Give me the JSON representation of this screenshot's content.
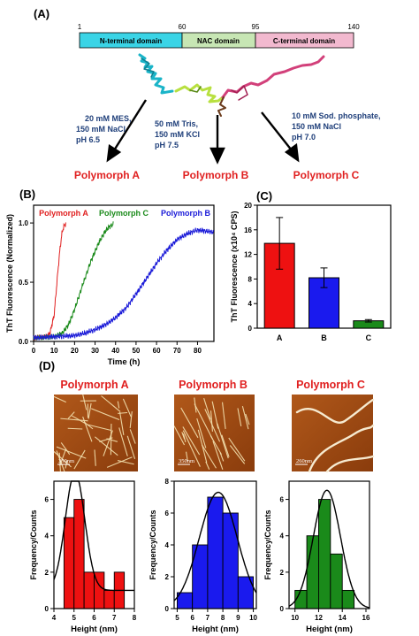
{
  "panel_labels": {
    "A": "(A)",
    "B": "(B)",
    "C": "(C)",
    "D": "(D)"
  },
  "domain_bar": {
    "ticks": [
      "1",
      "60",
      "95",
      "140"
    ],
    "domains": [
      {
        "label": "N-terminal domain",
        "color": "#3ad4e6"
      },
      {
        "label": "NAC domain",
        "color": "#c7e6b4"
      },
      {
        "label": "C-terminal domain",
        "color": "#f2b9cf"
      }
    ]
  },
  "conditions": [
    {
      "lines": [
        "20 mM MES,",
        "150 mM NaCl",
        "pH 6.5"
      ]
    },
    {
      "lines": [
        "50 mM Tris,",
        "150 mM KCl",
        "pH 7.5"
      ]
    },
    {
      "lines": [
        "10 mM Sod. phosphate,",
        "150 mM NaCl",
        "pH 7.0"
      ]
    }
  ],
  "condition_color": "#1f3f7a",
  "polymorph_color": "#e02020",
  "polymorphs": [
    "Polymorph A",
    "Polymorph B",
    "Polymorph C"
  ],
  "afm_scale_labels": [
    "350nm",
    "350nm",
    "260nm"
  ],
  "chart_data": [
    {
      "type": "line",
      "panel": "B",
      "xlabel": "Time (h)",
      "ylabel": "ThT Fluorescence (Normalized)",
      "xlim": [
        0,
        88
      ],
      "ylim": [
        0,
        1.15
      ],
      "xticks": [
        0,
        10,
        20,
        30,
        40,
        50,
        60,
        70,
        80
      ],
      "yticks": [
        0.0,
        0.5,
        1.0
      ],
      "legend_placement": "top",
      "series": [
        {
          "name": "Polymorph A",
          "color": "#e02020",
          "x": [
            0,
            6,
            8,
            10,
            11,
            12,
            13,
            14,
            15,
            16
          ],
          "y": [
            0.03,
            0.04,
            0.07,
            0.22,
            0.42,
            0.62,
            0.8,
            0.93,
            0.98,
            1.0
          ]
        },
        {
          "name": "Polymorph C",
          "color": "#1a8a1a",
          "x": [
            0,
            10,
            14,
            17,
            20,
            24,
            28,
            32,
            35,
            37,
            39
          ],
          "y": [
            0.03,
            0.04,
            0.07,
            0.14,
            0.27,
            0.48,
            0.68,
            0.84,
            0.93,
            0.97,
            0.99
          ]
        },
        {
          "name": "Polymorph B",
          "color": "#1a1ad8",
          "x": [
            0,
            20,
            25,
            30,
            35,
            40,
            45,
            50,
            55,
            60,
            65,
            70,
            75,
            80,
            85,
            88
          ],
          "y": [
            0.03,
            0.05,
            0.07,
            0.1,
            0.14,
            0.2,
            0.28,
            0.4,
            0.53,
            0.66,
            0.77,
            0.86,
            0.91,
            0.94,
            0.93,
            0.92
          ]
        }
      ]
    },
    {
      "type": "bar",
      "panel": "C",
      "ylabel": "ThT Fluorescence (x10⁴ CPS)",
      "categories": [
        "A",
        "B",
        "C"
      ],
      "values": [
        13.8,
        8.2,
        1.2
      ],
      "errors": [
        4.2,
        1.6,
        0.2
      ],
      "colors": [
        "#ee1111",
        "#1a1aee",
        "#1a8a1a"
      ],
      "ylim": [
        0,
        20
      ],
      "yticks": [
        0,
        4,
        8,
        12,
        16,
        20
      ]
    },
    {
      "type": "bar",
      "panel": "D-A",
      "xlabel": "Height (nm)",
      "ylabel": "Frequency/Counts",
      "color": "#ee1111",
      "bin_edges": [
        4.5,
        5,
        5.5,
        6,
        6.5,
        7,
        7.5
      ],
      "counts": [
        5,
        6,
        2,
        2,
        1,
        2
      ],
      "xlim": [
        4,
        8
      ],
      "ylim": [
        0,
        7
      ],
      "xticks": [
        4,
        5,
        6,
        7,
        8
      ],
      "yticks": [
        0,
        2,
        4,
        6
      ],
      "fit": {
        "mean": 5.05,
        "sigma": 0.48,
        "amp": 6.5,
        "baseline": 1.0
      }
    },
    {
      "type": "bar",
      "panel": "D-B",
      "xlabel": "Height (nm)",
      "ylabel": "Frequency/Counts",
      "color": "#1a1aee",
      "bin_edges": [
        5,
        6,
        7,
        8,
        9,
        10
      ],
      "counts": [
        1,
        4,
        7,
        6,
        2
      ],
      "xlim": [
        4.8,
        10.2
      ],
      "ylim": [
        0,
        8
      ],
      "xticks": [
        5,
        6,
        7,
        8,
        9,
        10
      ],
      "yticks": [
        0,
        2,
        4,
        6,
        8
      ],
      "fit": {
        "mean": 7.7,
        "sigma": 1.25,
        "amp": 7.3,
        "baseline": 0
      }
    },
    {
      "type": "bar",
      "panel": "D-C",
      "xlabel": "Height (nm)",
      "ylabel": "Frequency/Counts",
      "color": "#1a8a1a",
      "bin_edges": [
        10,
        11,
        12,
        13,
        14,
        15
      ],
      "counts": [
        1,
        4,
        6,
        3,
        1
      ],
      "xlim": [
        9.5,
        16.3
      ],
      "ylim": [
        0,
        7
      ],
      "xticks": [
        10,
        12,
        14,
        16
      ],
      "yticks": [
        0,
        2,
        4,
        6
      ],
      "fit": {
        "mean": 12.7,
        "sigma": 1.15,
        "amp": 6.5,
        "baseline": 0
      }
    }
  ]
}
